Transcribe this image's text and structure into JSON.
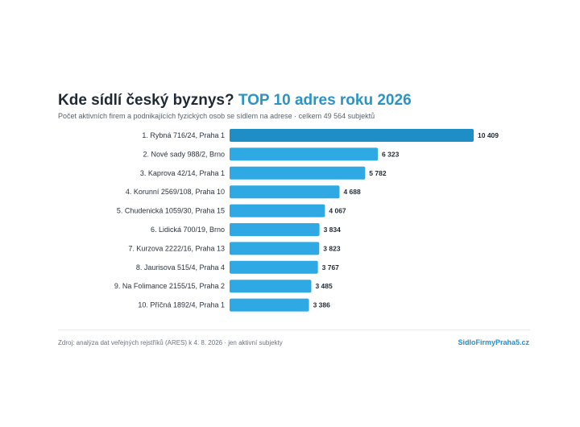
{
  "header": {
    "title_part1": "Kde sídlí český byznys?",
    "title_part2": "TOP 10 adres roku 2026",
    "subtitle": "Počet aktivních firem a podnikajících fyzických osob se sídlem na adrese · celkem 49 564 subjektů"
  },
  "chart_data": {
    "type": "bar",
    "orientation": "horizontal",
    "categories": [
      "1. Rybná 716/24, Praha 1",
      "2. Nové sady 988/2, Brno",
      "3. Kaprova 42/14, Praha 1",
      "4. Korunní 2569/108, Praha 10",
      "5. Chudenická 1059/30, Praha 15",
      "6. Lidická 700/19, Brno",
      "7. Kurzova 2222/16, Praha 13",
      "8. Jaurisova 515/4, Praha 4",
      "9. Na Folimance 2155/15, Praha 2",
      "10. Příčná 1892/4, Praha 1"
    ],
    "values": [
      10409,
      6323,
      5782,
      4688,
      4067,
      3834,
      3823,
      3767,
      3485,
      3386
    ],
    "value_labels": [
      "10 409",
      "6 323",
      "5 782",
      "4 688",
      "4 067",
      "3 834",
      "3 823",
      "3 767",
      "3 485",
      "3 386"
    ],
    "xlim": [
      0,
      10409
    ],
    "grid": false,
    "legend": "none",
    "colors": {
      "top_bar": "#1f8dc6",
      "bar": "#2ea9e3"
    }
  },
  "footer": {
    "source": "Zdroj: analýza dat veřejných rejstříků (ARES) k 4. 8. 2026 · jen aktivní subjekty",
    "brand": "SidloFirmyPraha5.cz"
  }
}
